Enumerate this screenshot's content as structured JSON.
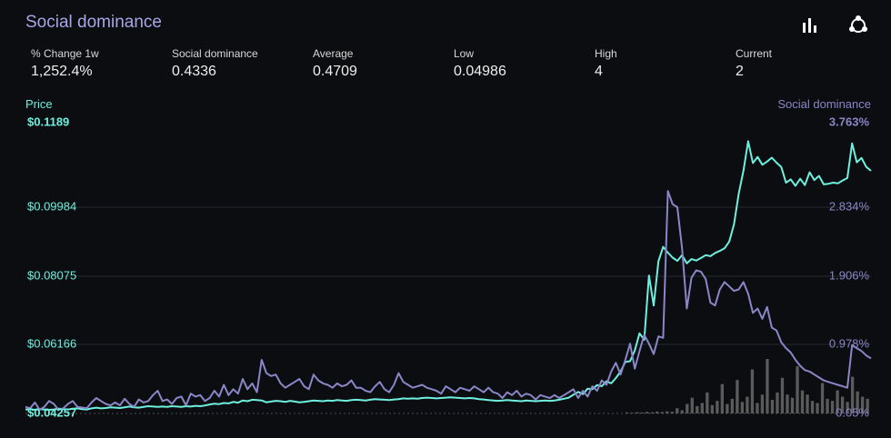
{
  "title": "Social dominance",
  "icons": {
    "bar_chart": "bar-chart-icon",
    "share": "share-icon"
  },
  "stats": [
    {
      "label": "% Change 1w",
      "value": "1,252.4%"
    },
    {
      "label": "Social dominance",
      "value": "0.4336"
    },
    {
      "label": "Average",
      "value": "0.4709"
    },
    {
      "label": "Low",
      "value": "0.04986"
    },
    {
      "label": "High",
      "value": "4"
    },
    {
      "label": "Current",
      "value": "2"
    }
  ],
  "colors": {
    "price": "#6ff0df",
    "social": "#8b86c8",
    "bars": "#5b5b5b",
    "grid": "#262a30",
    "title": "#a9a6e8"
  },
  "chart_data": {
    "type": "line",
    "left_axis": {
      "title": "Price",
      "ticks": [
        "$0.1189",
        "$0.09984",
        "$0.08075",
        "$0.06166",
        "$0.04257"
      ],
      "range": [
        0.04257,
        0.1189
      ]
    },
    "right_axis": {
      "title": "Social dominance",
      "ticks": [
        "3.763%",
        "2.834%",
        "1.906%",
        "0.978%",
        "0.05%"
      ],
      "range": [
        0.05,
        3.763
      ]
    },
    "series": [
      {
        "name": "Price",
        "axis": "left",
        "values": [
          0.0437,
          0.0438,
          0.0436,
          0.0438,
          0.0437,
          0.0436,
          0.0437,
          0.0439,
          0.0438,
          0.0437,
          0.0439,
          0.044,
          0.0438,
          0.0437,
          0.044,
          0.0442,
          0.044,
          0.0441,
          0.0443,
          0.0442,
          0.0441,
          0.0443,
          0.0445,
          0.0443,
          0.0442,
          0.0444,
          0.0446,
          0.0445,
          0.0444,
          0.0445,
          0.0444,
          0.0446,
          0.0445,
          0.0444,
          0.0446,
          0.0445,
          0.0447,
          0.0446,
          0.0448,
          0.0451,
          0.0453,
          0.0452,
          0.0455,
          0.0454,
          0.0458,
          0.0456,
          0.0462,
          0.046,
          0.0464,
          0.0463,
          0.0462,
          0.0457,
          0.0459,
          0.0461,
          0.046,
          0.0458,
          0.0461,
          0.0459,
          0.0457,
          0.0458,
          0.046,
          0.0462,
          0.0461,
          0.046,
          0.0462,
          0.0461,
          0.0463,
          0.0462,
          0.0461,
          0.0463,
          0.0464,
          0.0463,
          0.0462,
          0.0464,
          0.0466,
          0.0465,
          0.0464,
          0.0463,
          0.0465,
          0.0466,
          0.0468,
          0.0467,
          0.0468,
          0.0467,
          0.0469,
          0.047,
          0.0469,
          0.0468,
          0.0469,
          0.047,
          0.0471,
          0.047,
          0.0469,
          0.0468,
          0.0469,
          0.0468,
          0.0466,
          0.0465,
          0.0463,
          0.0462,
          0.0461,
          0.0462,
          0.0463,
          0.0462,
          0.0461,
          0.046,
          0.0462,
          0.0461,
          0.046,
          0.0461,
          0.0462,
          0.0461,
          0.0462,
          0.0464,
          0.0467,
          0.047,
          0.0478,
          0.0486,
          0.048,
          0.0495,
          0.0494,
          0.0505,
          0.0502,
          0.0516,
          0.051,
          0.0525,
          0.0543,
          0.057,
          0.0572,
          0.0602,
          0.065,
          0.0632,
          0.0812,
          0.0728,
          0.0852,
          0.0892,
          0.0876,
          0.0862,
          0.0853,
          0.0869,
          0.0846,
          0.0858,
          0.0854,
          0.0861,
          0.0869,
          0.0866,
          0.0875,
          0.0881,
          0.0888,
          0.0907,
          0.0955,
          0.1041,
          0.1105,
          0.1188,
          0.1127,
          0.1144,
          0.1122,
          0.1131,
          0.1142,
          0.1128,
          0.1116,
          0.1072,
          0.1081,
          0.1063,
          0.1083,
          0.1065,
          0.1101,
          0.1079,
          0.1091,
          0.1067,
          0.1069,
          0.1072,
          0.107,
          0.1078,
          0.1085,
          0.1182,
          0.1129,
          0.1141,
          0.1116,
          0.1105
        ]
      },
      {
        "name": "Social dominance",
        "axis": "right",
        "values": [
          0.14,
          0.12,
          0.2,
          0.1,
          0.14,
          0.22,
          0.18,
          0.1,
          0.12,
          0.18,
          0.22,
          0.14,
          0.13,
          0.12,
          0.2,
          0.26,
          0.22,
          0.18,
          0.16,
          0.2,
          0.16,
          0.25,
          0.18,
          0.14,
          0.24,
          0.2,
          0.22,
          0.3,
          0.36,
          0.22,
          0.24,
          0.18,
          0.26,
          0.28,
          0.16,
          0.32,
          0.28,
          0.3,
          0.22,
          0.26,
          0.36,
          0.28,
          0.44,
          0.3,
          0.38,
          0.32,
          0.52,
          0.38,
          0.46,
          0.34,
          0.78,
          0.6,
          0.56,
          0.58,
          0.46,
          0.4,
          0.44,
          0.48,
          0.52,
          0.42,
          0.38,
          0.58,
          0.5,
          0.46,
          0.44,
          0.4,
          0.46,
          0.42,
          0.44,
          0.5,
          0.4,
          0.4,
          0.36,
          0.34,
          0.42,
          0.48,
          0.38,
          0.34,
          0.44,
          0.6,
          0.48,
          0.44,
          0.4,
          0.42,
          0.44,
          0.4,
          0.38,
          0.36,
          0.32,
          0.42,
          0.38,
          0.34,
          0.4,
          0.38,
          0.36,
          0.42,
          0.38,
          0.34,
          0.4,
          0.34,
          0.32,
          0.26,
          0.34,
          0.3,
          0.36,
          0.28,
          0.32,
          0.3,
          0.24,
          0.3,
          0.28,
          0.26,
          0.3,
          0.26,
          0.3,
          0.34,
          0.38,
          0.26,
          0.36,
          0.28,
          0.42,
          0.36,
          0.5,
          0.44,
          0.62,
          0.74,
          0.58,
          0.78,
          1.0,
          0.66,
          0.9,
          1.12,
          1.0,
          0.86,
          1.1,
          1.08,
          3.08,
          2.9,
          2.86,
          2.3,
          1.48,
          1.9,
          2.0,
          1.98,
          1.88,
          1.56,
          1.52,
          1.74,
          1.84,
          1.78,
          1.72,
          1.74,
          1.84,
          1.68,
          1.42,
          1.48,
          1.34,
          1.5,
          1.22,
          1.18,
          1.02,
          0.94,
          0.88,
          0.78,
          0.7,
          0.64,
          0.62,
          0.58,
          0.54,
          0.5,
          0.48,
          0.46,
          0.44,
          0.42,
          0.4,
          0.98,
          0.94,
          0.9,
          0.84,
          0.8
        ]
      }
    ],
    "volume_bars": [
      0.1,
      0.08,
      0.12,
      0.1,
      0.15,
      0.12,
      0.18,
      0.14,
      0.2,
      0.16,
      0.5,
      0.3,
      0.9,
      1.5,
      0.7,
      1.0,
      2.0,
      0.8,
      1.2,
      2.8,
      0.9,
      1.4,
      3.2,
      1.1,
      1.6,
      4.2,
      1.0,
      1.8,
      5.2,
      1.3,
      2.0,
      3.4,
      1.8,
      1.5,
      4.5,
      2.2,
      1.8,
      1.2,
      1.0,
      2.9,
      1.4,
      1.2,
      2.2,
      1.6,
      1.1,
      3.5,
      2.1,
      1.6,
      1.4
    ]
  }
}
